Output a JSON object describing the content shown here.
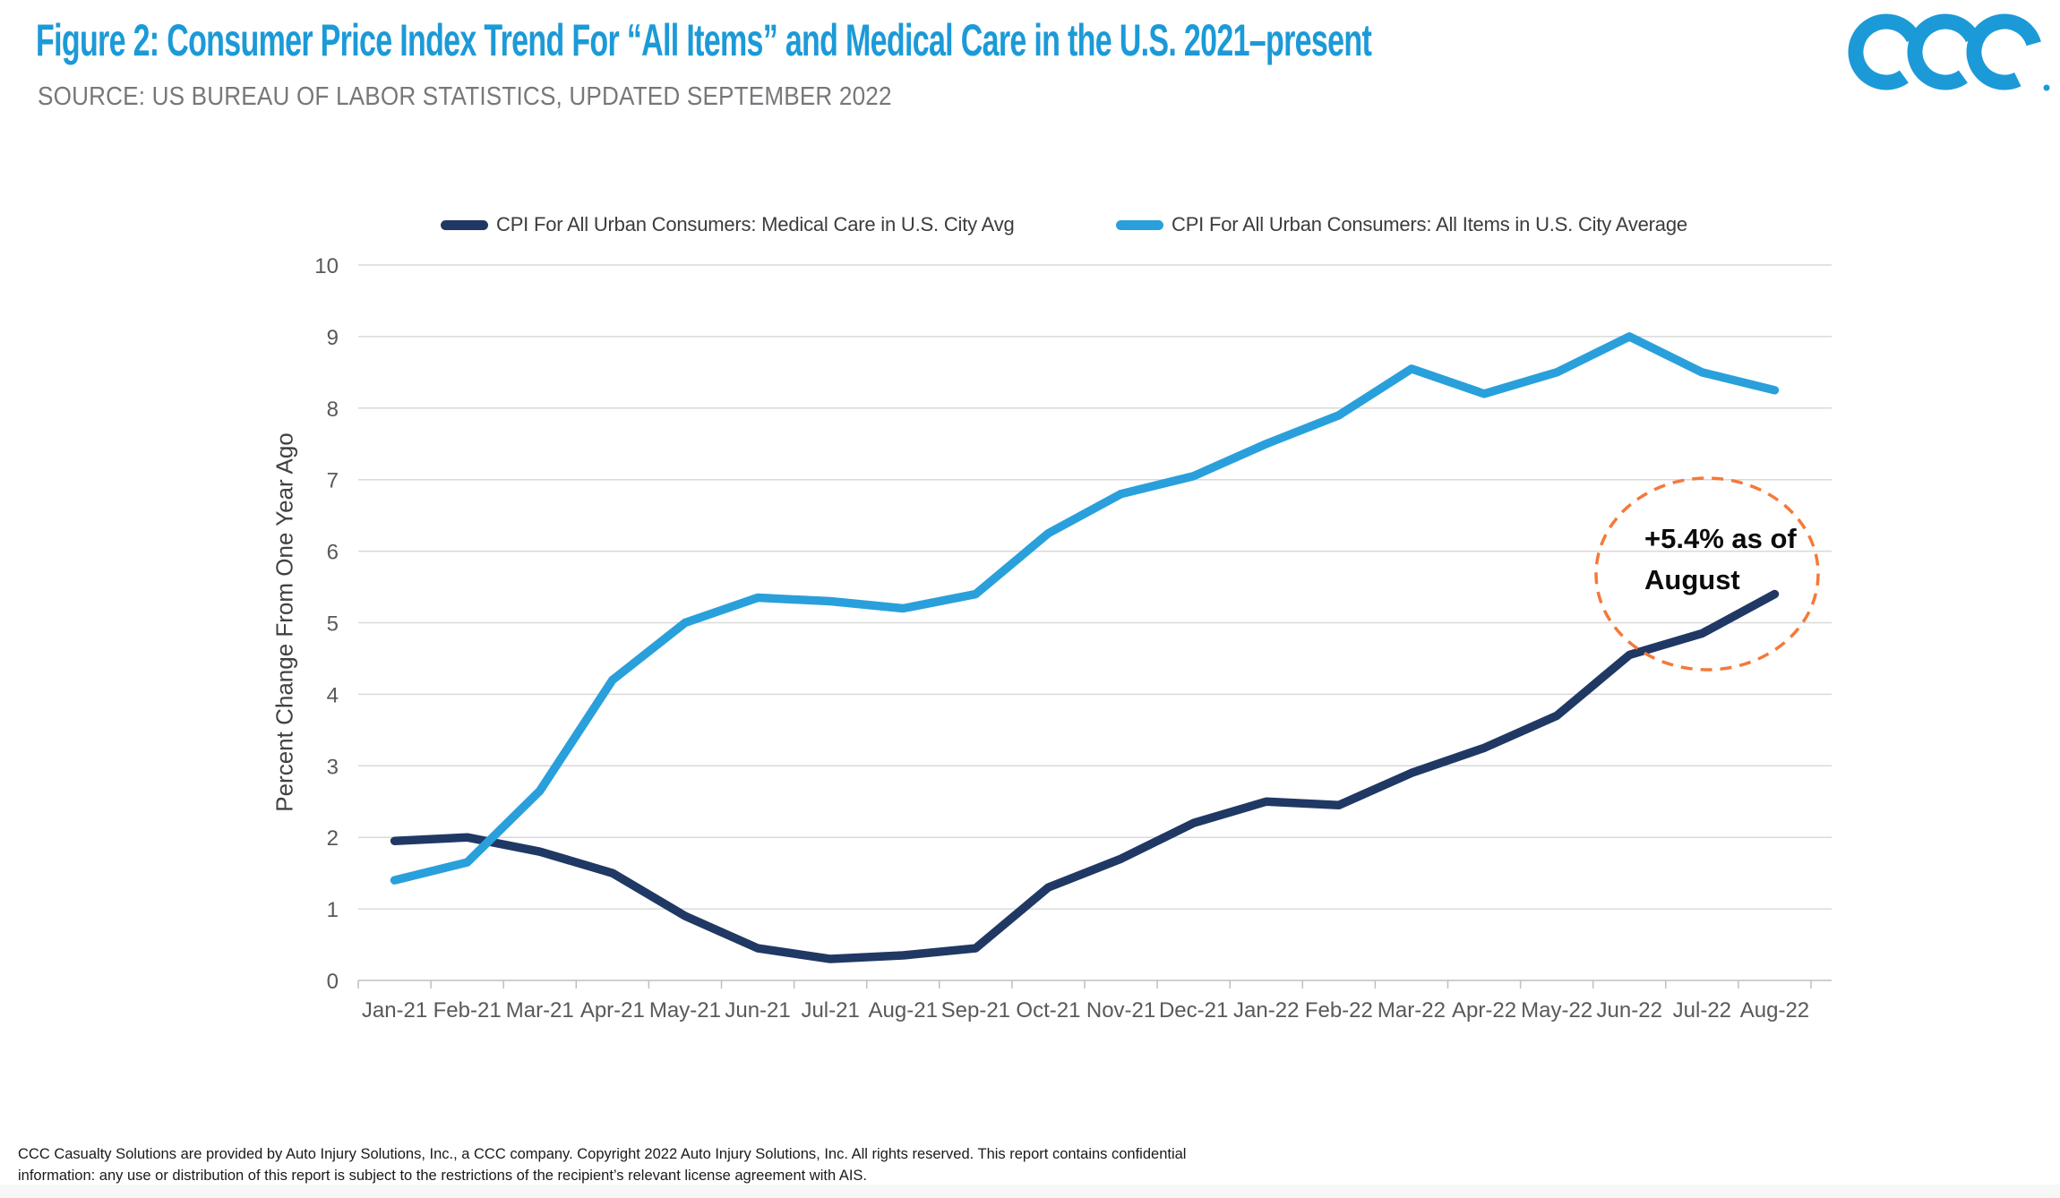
{
  "header": {
    "title": "Figure 2: Consumer Price Index Trend For “All Items” and Medical Care in the U.S. 2021–present",
    "source": "SOURCE: US BUREAU OF LABOR STATISTICS, UPDATED SEPTEMBER 2022",
    "logo_text": "CCC"
  },
  "colors": {
    "title_blue": "#1C9AD7",
    "logo_blue": "#1C9AD7",
    "gridline": "#D9D9D9",
    "axis": "#BFBFBF",
    "medical_navy": "#203864",
    "all_items_blue": "#29A0DB",
    "annotation_orange": "#F4793B"
  },
  "chart_data": {
    "type": "line",
    "title": "",
    "ylabel": "Percent Change From One Year Ago",
    "xlabel": "",
    "ylim": [
      0,
      10
    ],
    "ytick_step": 1,
    "grid": true,
    "legend_position": "top",
    "categories": [
      "Jan-21",
      "Feb-21",
      "Mar-21",
      "Apr-21",
      "May-21",
      "Jun-21",
      "Jul-21",
      "Aug-21",
      "Sep-21",
      "Oct-21",
      "Nov-21",
      "Dec-21",
      "Jan-22",
      "Feb-22",
      "Mar-22",
      "Apr-22",
      "May-22",
      "Jun-22",
      "Jul-22",
      "Aug-22"
    ],
    "series": [
      {
        "name": "CPI For All Urban Consumers: Medical Care in U.S. City Avg",
        "color": "#203864",
        "values": [
          1.95,
          2.0,
          1.8,
          1.5,
          0.9,
          0.45,
          0.3,
          0.35,
          0.45,
          1.3,
          1.7,
          2.2,
          2.5,
          2.45,
          2.9,
          3.25,
          3.7,
          4.55,
          4.85,
          5.4
        ]
      },
      {
        "name": "CPI For All Urban Consumers: All Items in U.S. City Average",
        "color": "#29A0DB",
        "values": [
          1.4,
          1.65,
          2.65,
          4.2,
          5.0,
          5.35,
          5.3,
          5.2,
          5.4,
          6.25,
          6.8,
          7.05,
          7.5,
          7.9,
          8.55,
          8.2,
          8.5,
          9.0,
          8.5,
          8.25
        ]
      }
    ],
    "annotation": {
      "text_line1": "+5.4% as of",
      "text_line2": "August",
      "target_month": "Aug-22",
      "target_value": 5.4,
      "circle_color": "#F4793B"
    }
  },
  "footer": {
    "line1": "CCC Casualty Solutions are provided by Auto Injury Solutions, Inc., a CCC company. Copyright 2022 Auto Injury Solutions, Inc. All rights reserved. This report contains confidential",
    "line2": "information: any use or distribution of this report is subject to the restrictions of the recipient’s relevant license agreement with AIS."
  }
}
